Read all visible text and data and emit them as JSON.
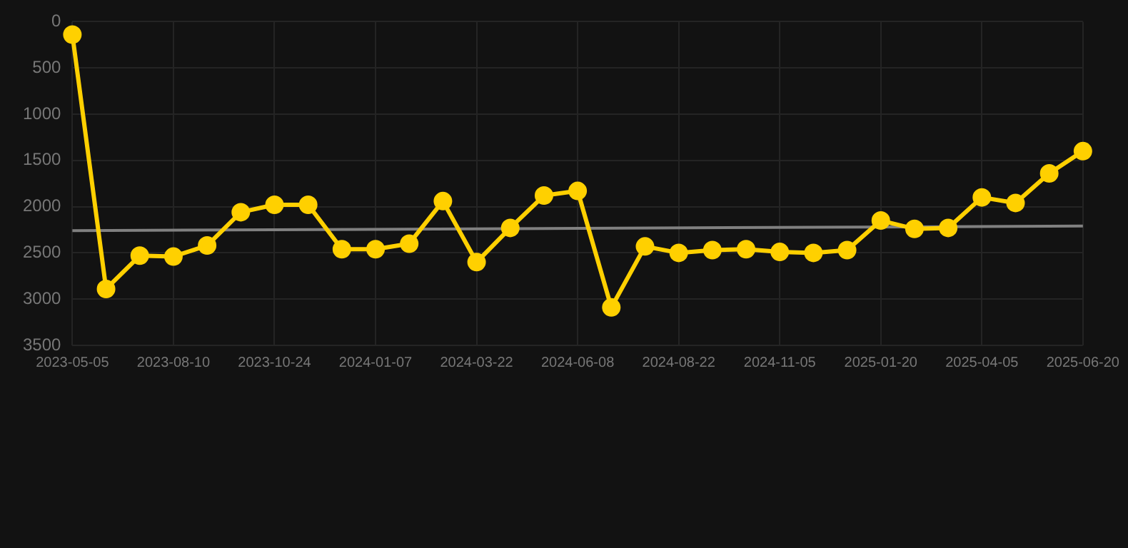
{
  "chart_data": {
    "type": "line",
    "categories": [
      "2023-05-05",
      null,
      null,
      "2023-08-10",
      null,
      null,
      "2023-10-24",
      null,
      null,
      "2024-01-07",
      null,
      null,
      "2024-03-22",
      null,
      null,
      "2024-06-08",
      null,
      null,
      "2024-08-22",
      null,
      null,
      "2024-11-05",
      null,
      null,
      "2025-01-20",
      null,
      null,
      "2025-04-05",
      null,
      null,
      "2025-06-20"
    ],
    "series": [
      {
        "color": "#ffd000",
        "values": [
          140,
          2890,
          2530,
          2540,
          2420,
          2060,
          1980,
          1980,
          2460,
          2460,
          2400,
          1940,
          2600,
          2230,
          1880,
          1830,
          3090,
          2430,
          2500,
          2470,
          2460,
          2490,
          2500,
          2470,
          2150,
          2240,
          2230,
          1900,
          1960,
          1640,
          1400
        ]
      },
      {
        "type": "line",
        "color": "#808080",
        "marker": "none",
        "values": [
          2260,
          null,
          null,
          null,
          null,
          null,
          null,
          null,
          null,
          null,
          null,
          null,
          null,
          null,
          null,
          null,
          null,
          null,
          null,
          null,
          null,
          null,
          null,
          null,
          null,
          null,
          null,
          null,
          null,
          null,
          2210
        ]
      }
    ],
    "ylim": [
      3500,
      0
    ],
    "yticks": [
      0,
      500,
      1000,
      1500,
      2000,
      2500,
      3000,
      3500
    ],
    "grid": true,
    "legend": false,
    "marker": "circle"
  }
}
